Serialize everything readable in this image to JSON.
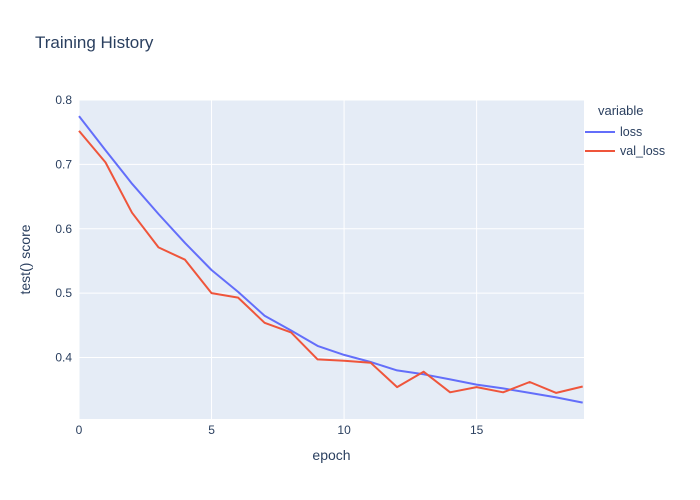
{
  "title": "Training History",
  "chart_data": {
    "type": "line",
    "title": "Training History",
    "xlabel": "epoch",
    "ylabel": "test() score",
    "legend_title": "variable",
    "legend_position": "right",
    "grid": true,
    "x": [
      0,
      1,
      2,
      3,
      4,
      5,
      6,
      7,
      8,
      9,
      10,
      11,
      12,
      13,
      14,
      15,
      16,
      17,
      18,
      19
    ],
    "x_ticks": [
      0,
      5,
      10,
      15
    ],
    "y_ticks": [
      0.4,
      0.5,
      0.6,
      0.7,
      0.8
    ],
    "xlim": [
      0,
      19.05
    ],
    "ylim": [
      0.3045,
      0.8
    ],
    "series": [
      {
        "name": "loss",
        "color": "#636EFA",
        "values": [
          0.775,
          0.722,
          0.67,
          0.623,
          0.578,
          0.536,
          0.502,
          0.465,
          0.442,
          0.418,
          0.404,
          0.393,
          0.38,
          0.374,
          0.366,
          0.358,
          0.352,
          0.345,
          0.338,
          0.33
        ]
      },
      {
        "name": "val_loss",
        "color": "#EF553B",
        "values": [
          0.752,
          0.703,
          0.625,
          0.571,
          0.552,
          0.5,
          0.493,
          0.454,
          0.439,
          0.397,
          0.395,
          0.392,
          0.354,
          0.378,
          0.346,
          0.354,
          0.346,
          0.362,
          0.345,
          0.355
        ]
      }
    ],
    "colors": {
      "plot_bg": "#E5ECF6",
      "grid": "#FFFFFF",
      "text": "#2a3f5f"
    }
  }
}
